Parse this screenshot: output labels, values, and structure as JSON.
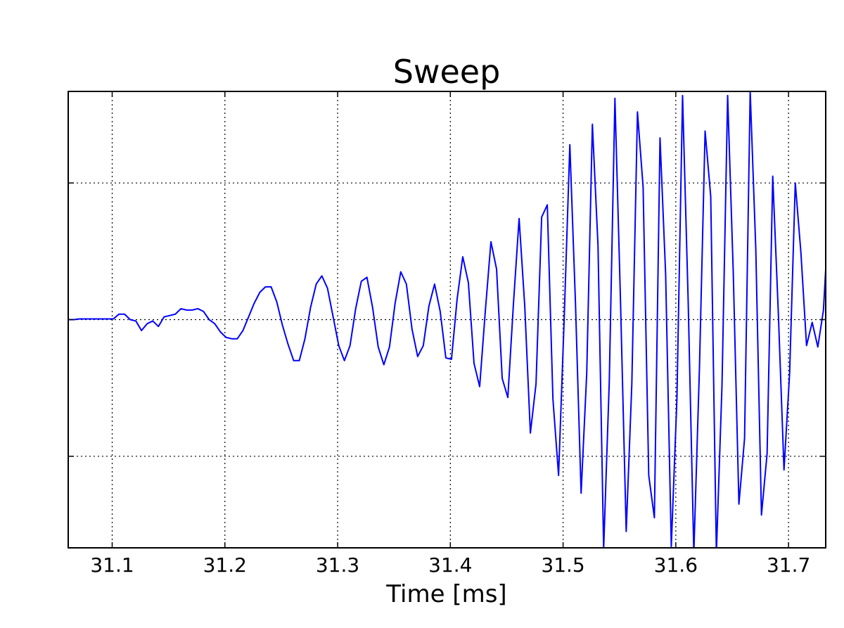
{
  "chart_data": {
    "type": "line",
    "title": "Sweep",
    "xlabel": "Time [ms]",
    "ylabel": "",
    "xlim": [
      31.061,
      31.733
    ],
    "ylim": [
      -1.67,
      1.67
    ],
    "grid": true,
    "x_ticks": [
      31.1,
      31.2,
      31.3,
      31.4,
      31.5,
      31.6,
      31.7
    ],
    "x_tick_labels": [
      "31.1",
      "31.2",
      "31.3",
      "31.4",
      "31.5",
      "31.6",
      "31.7"
    ],
    "y_ticks": [
      -1.0,
      0.0,
      1.0
    ],
    "y_tick_labels": [
      "",
      "",
      ""
    ],
    "series": [
      {
        "color": "#0000ff",
        "x": [
          31.061,
          31.066,
          31.071,
          31.076,
          31.081,
          31.086,
          31.091,
          31.096,
          31.101,
          31.106,
          31.111,
          31.116,
          31.121,
          31.126,
          31.131,
          31.136,
          31.141,
          31.146,
          31.151,
          31.156,
          31.161,
          31.166,
          31.171,
          31.176,
          31.181,
          31.186,
          31.191,
          31.196,
          31.201,
          31.206,
          31.211,
          31.216,
          31.221,
          31.226,
          31.231,
          31.236,
          31.241,
          31.246,
          31.251,
          31.256,
          31.261,
          31.266,
          31.271,
          31.276,
          31.281,
          31.286,
          31.291,
          31.296,
          31.301,
          31.306,
          31.311,
          31.316,
          31.321,
          31.326,
          31.331,
          31.336,
          31.341,
          31.346,
          31.351,
          31.356,
          31.361,
          31.366,
          31.371,
          31.376,
          31.381,
          31.386,
          31.391,
          31.396,
          31.401,
          31.406,
          31.411,
          31.416,
          31.421,
          31.426,
          31.431,
          31.436,
          31.441,
          31.446,
          31.451,
          31.456,
          31.461,
          31.466,
          31.471,
          31.476,
          31.481,
          31.486,
          31.491,
          31.496,
          31.501,
          31.506,
          31.511,
          31.516,
          31.521,
          31.526,
          31.531,
          31.536,
          31.541,
          31.546,
          31.551,
          31.556,
          31.561,
          31.566,
          31.571,
          31.576,
          31.581,
          31.586,
          31.591,
          31.596,
          31.601,
          31.606,
          31.611,
          31.616,
          31.621,
          31.626,
          31.631,
          31.636,
          31.641,
          31.646,
          31.651,
          31.656,
          31.661,
          31.666,
          31.671,
          31.676,
          31.681,
          31.686,
          31.691,
          31.696,
          31.701,
          31.706,
          31.711,
          31.716,
          31.721,
          31.726,
          31.731,
          31.733
        ],
        "y": [
          0.0,
          0.0,
          0.005,
          0.005,
          0.005,
          0.005,
          0.005,
          0.005,
          0.005,
          0.04,
          0.04,
          0.0,
          -0.01,
          -0.08,
          -0.03,
          -0.01,
          -0.05,
          0.02,
          0.03,
          0.04,
          0.08,
          0.07,
          0.07,
          0.08,
          0.06,
          0.0,
          -0.03,
          -0.09,
          -0.13,
          -0.14,
          -0.14,
          -0.08,
          0.02,
          0.12,
          0.2,
          0.24,
          0.24,
          0.13,
          -0.04,
          -0.18,
          -0.3,
          -0.3,
          -0.14,
          0.09,
          0.26,
          0.32,
          0.23,
          0.02,
          -0.19,
          -0.3,
          -0.19,
          0.08,
          0.28,
          0.31,
          0.09,
          -0.2,
          -0.33,
          -0.2,
          0.12,
          0.35,
          0.26,
          -0.07,
          -0.27,
          -0.19,
          0.1,
          0.26,
          0.06,
          -0.28,
          -0.29,
          0.15,
          0.46,
          0.27,
          -0.32,
          -0.49,
          0.06,
          0.57,
          0.37,
          -0.43,
          -0.57,
          0.12,
          0.74,
          0.1,
          -0.83,
          -0.47,
          0.75,
          0.84,
          -0.58,
          -1.14,
          0.01,
          1.28,
          0.12,
          -1.27,
          -0.39,
          1.43,
          0.54,
          -1.68,
          -0.45,
          1.62,
          0.12,
          -1.55,
          -0.47,
          1.52,
          0.97,
          -1.14,
          -1.45,
          1.33,
          0.33,
          -1.66,
          -0.58,
          1.64,
          0.13,
          -1.71,
          -0.35,
          1.38,
          0.9,
          -1.71,
          -0.48,
          1.64,
          0.34,
          -1.35,
          -0.87,
          1.67,
          0.51,
          -1.43,
          -0.98,
          1.05,
          0.04,
          -1.1,
          -0.39,
          1.0,
          0.49,
          -0.19,
          -0.02,
          -0.2,
          0.07,
          0.37
        ]
      }
    ]
  }
}
